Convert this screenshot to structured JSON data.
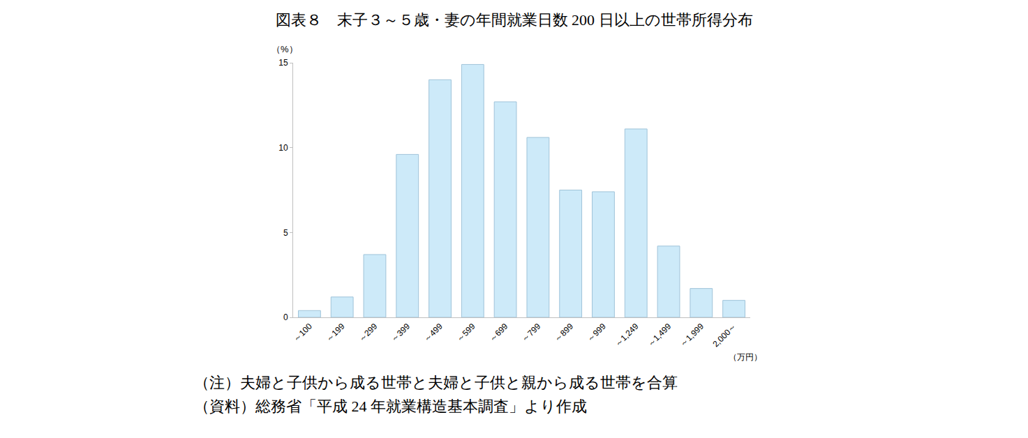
{
  "chart_data": {
    "type": "bar",
    "title": "図表８　末子３～５歳・妻の年間就業日数 200 日以上の世帯所得分布",
    "y_label": "（%）",
    "x_label": "（万円）",
    "annotations": [
      "（注）夫婦と子供から成る世帯と夫婦と子供と親から成る世帯を合算",
      "（資料）総務省「平成 24 年就業構造基本調査」より作成"
    ],
    "categories": [
      "～100",
      "～199",
      "～299",
      "～399",
      "～499",
      "～599",
      "～699",
      "～799",
      "～899",
      "～999",
      "～1,249",
      "～1,499",
      "～1,999",
      "2,000～"
    ],
    "values": [
      0.4,
      1.2,
      3.7,
      9.6,
      14.0,
      14.9,
      12.7,
      10.6,
      7.5,
      7.4,
      11.1,
      4.2,
      1.7,
      1.0
    ],
    "color": "#cdeaf9",
    "ylim": [
      0,
      15
    ],
    "yticks": [
      0,
      5,
      10,
      15
    ],
    "grid": false
  }
}
